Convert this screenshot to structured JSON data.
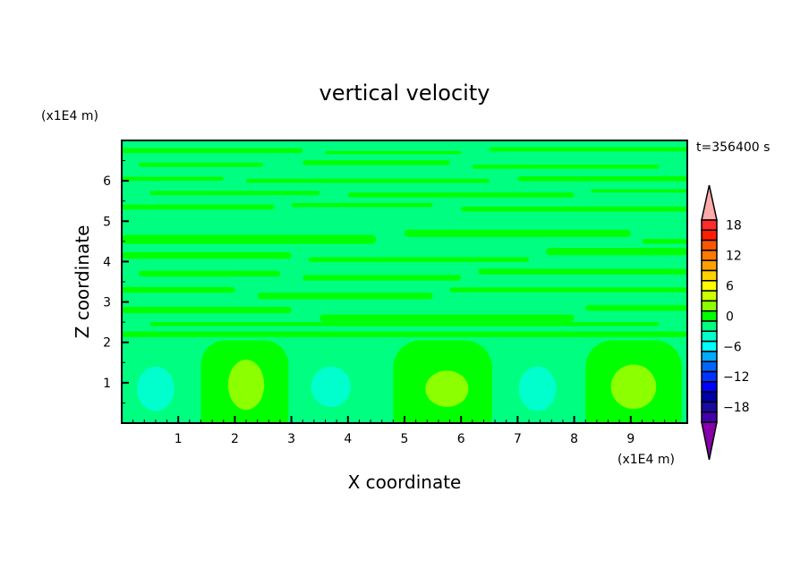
{
  "chart_data": {
    "type": "heatmap",
    "title": "vertical velocity",
    "xlabel": "X coordinate",
    "ylabel": "Z coordinate",
    "x_unit": "(x1E4 m)",
    "y_unit": "(x1E4 m)",
    "time_label": "t=356400 s",
    "xlim": [
      0,
      10
    ],
    "ylim": [
      0,
      7
    ],
    "x_ticks": [
      1,
      2,
      3,
      4,
      5,
      6,
      7,
      8,
      9
    ],
    "y_ticks": [
      1,
      2,
      3,
      4,
      5,
      6
    ],
    "colorbar": {
      "labels": [
        "18",
        "12",
        "6",
        "0",
        "-6",
        "-12",
        "-18"
      ],
      "label_box_index": [
        0,
        3,
        6,
        9,
        12,
        15,
        18
      ],
      "colors": [
        "#ff2a2a",
        "#ff1e00",
        "#ff5500",
        "#ff7800",
        "#ffa000",
        "#ffd200",
        "#ffff00",
        "#ccff00",
        "#8cff00",
        "#00ff00",
        "#00ff80",
        "#00ffcc",
        "#00ffff",
        "#00aaff",
        "#0066ff",
        "#0033ff",
        "#0000ff",
        "#0000aa",
        "#1a0aa0",
        "#4400aa"
      ],
      "over_color": "#ffaaaa",
      "under_color": "#8800aa"
    },
    "background_color": "#00ff80",
    "updraft_columns": [
      {
        "x0": 1.4,
        "x1": 2.95,
        "top": 2.05,
        "core_x": 2.2,
        "core_z": 0.95,
        "core_rx": 0.32,
        "core_rz": 0.62
      },
      {
        "x0": 4.8,
        "x1": 6.55,
        "top": 2.05,
        "core_x": 5.75,
        "core_z": 0.85,
        "core_rx": 0.38,
        "core_rz": 0.45
      },
      {
        "x0": 8.2,
        "x1": 9.9,
        "top": 2.05,
        "core_x": 9.05,
        "core_z": 0.9,
        "core_rx": 0.4,
        "core_rz": 0.55
      }
    ],
    "downdraft_cores": [
      {
        "x": 0.6,
        "z": 0.85,
        "rx": 0.33,
        "rz": 0.55
      },
      {
        "x": 3.7,
        "z": 0.9,
        "rx": 0.35,
        "rz": 0.5
      },
      {
        "x": 7.35,
        "z": 0.85,
        "rx": 0.33,
        "rz": 0.55
      }
    ],
    "positive_streaks": [
      [
        0.0,
        3.2,
        6.75,
        0.12
      ],
      [
        3.6,
        6.0,
        6.7,
        0.08
      ],
      [
        6.5,
        10,
        6.78,
        0.1
      ],
      [
        0.3,
        2.5,
        6.4,
        0.1
      ],
      [
        3.2,
        5.8,
        6.45,
        0.12
      ],
      [
        6.2,
        9.5,
        6.35,
        0.1
      ],
      [
        0.0,
        1.8,
        6.05,
        0.1
      ],
      [
        2.2,
        6.5,
        6.0,
        0.1
      ],
      [
        7.0,
        10,
        6.05,
        0.12
      ],
      [
        0.5,
        3.5,
        5.7,
        0.1
      ],
      [
        4.0,
        8.0,
        5.65,
        0.12
      ],
      [
        8.3,
        10,
        5.75,
        0.08
      ],
      [
        0.0,
        2.7,
        5.35,
        0.12
      ],
      [
        3.0,
        5.5,
        5.4,
        0.1
      ],
      [
        6.0,
        10,
        5.3,
        0.12
      ],
      [
        0.0,
        4.5,
        4.55,
        0.22
      ],
      [
        5.0,
        9.0,
        4.7,
        0.18
      ],
      [
        9.2,
        10,
        4.5,
        0.12
      ],
      [
        0.0,
        3.0,
        4.15,
        0.16
      ],
      [
        3.3,
        7.2,
        4.05,
        0.12
      ],
      [
        7.5,
        10,
        4.25,
        0.18
      ],
      [
        0.3,
        2.8,
        3.7,
        0.14
      ],
      [
        3.2,
        6.0,
        3.6,
        0.14
      ],
      [
        6.3,
        10,
        3.75,
        0.14
      ],
      [
        0.0,
        2.0,
        3.3,
        0.14
      ],
      [
        2.4,
        5.5,
        3.15,
        0.16
      ],
      [
        5.8,
        10,
        3.3,
        0.12
      ],
      [
        0.0,
        3.0,
        2.8,
        0.16
      ],
      [
        3.5,
        8.0,
        2.6,
        0.18
      ],
      [
        8.2,
        10,
        2.85,
        0.14
      ],
      [
        0.0,
        10,
        2.2,
        0.14
      ],
      [
        0.5,
        9.5,
        2.45,
        0.1
      ]
    ]
  }
}
